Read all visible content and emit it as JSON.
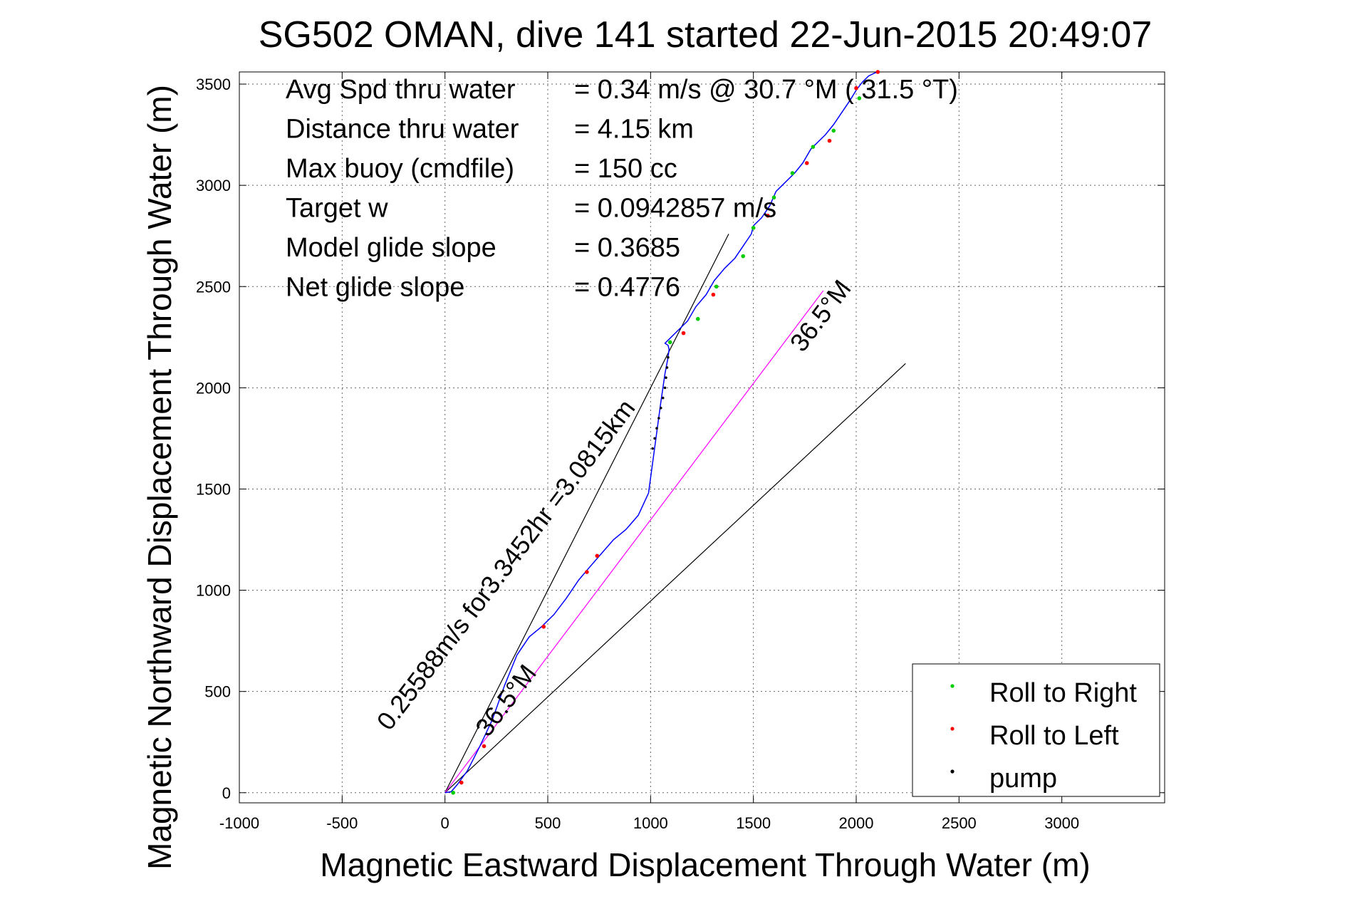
{
  "chart_data": {
    "type": "line",
    "title": "SG502 OMAN, dive 141 started 22-Jun-2015 20:49:07",
    "xlabel": "Magnetic Eastward Displacement Through Water (m)",
    "ylabel": "Magnetic Northward Displacement Through Water (m)",
    "xlim": [
      -1000,
      3000
    ],
    "ylim": [
      0,
      3500
    ],
    "xticks": [
      -1000,
      -500,
      0,
      500,
      1000,
      1500,
      2000,
      2500,
      3000
    ],
    "yticks": [
      0,
      500,
      1000,
      1500,
      2000,
      2500,
      3000,
      3500
    ],
    "grid": true,
    "legend_position": "bottom-right",
    "stats": [
      {
        "label": "Avg Spd thru water",
        "value": "=  0.34 m/s @  30.7 °M (  31.5 °T)"
      },
      {
        "label": "Distance thru water",
        "value": "=  4.15 km"
      },
      {
        "label": "Max buoy (cmdfile)",
        "value": "= 150 cc"
      },
      {
        "label": "Target w",
        "value": "= 0.0942857 m/s"
      },
      {
        "label": "Model glide slope",
        "value": "= 0.3685"
      },
      {
        "label": "Net glide slope",
        "value": "= 0.4776"
      }
    ],
    "annotations": [
      {
        "text": "0.25588m/s for3.3452hr =3.0815km",
        "x": 330,
        "y": 1100,
        "angle_deg": 34
      },
      {
        "text": "36.5°M",
        "x": 1860,
        "y": 2330,
        "angle_deg": 34
      },
      {
        "text": "36.5°M",
        "x": 330,
        "y": 430,
        "angle_deg": 34
      }
    ],
    "reference_lines": [
      {
        "name": "heading-line-upper",
        "from": [
          0,
          0
        ],
        "to": [
          1380,
          2760
        ],
        "color": "#000000"
      },
      {
        "name": "heading-line-lower",
        "from": [
          0,
          0
        ],
        "to": [
          2240,
          2120
        ],
        "color": "#000000"
      },
      {
        "name": "heading-line-current",
        "from": [
          0,
          0
        ],
        "to": [
          1840,
          2480
        ],
        "color": "#ff00ff"
      }
    ],
    "series": [
      {
        "name": "track",
        "color": "#0000ff",
        "x": [
          0,
          30,
          60,
          110,
          170,
          230,
          290,
          350,
          410,
          470,
          530,
          590,
          650,
          700,
          760,
          820,
          880,
          940,
          990,
          1010,
          1030,
          1050,
          1070,
          1085,
          1090,
          1085,
          1070,
          1090,
          1120,
          1150,
          1180,
          1220,
          1270,
          1310,
          1360,
          1410,
          1450,
          1490,
          1500,
          1540,
          1580,
          1610,
          1650,
          1700,
          1740,
          1780,
          1810,
          1850,
          1890,
          1930,
          1970,
          2000,
          2030,
          2060,
          2090,
          2110
        ],
        "y": [
          0,
          5,
          40,
          110,
          230,
          360,
          530,
          680,
          770,
          820,
          880,
          960,
          1050,
          1110,
          1180,
          1250,
          1300,
          1370,
          1480,
          1630,
          1780,
          1930,
          2070,
          2150,
          2190,
          2210,
          2220,
          2240,
          2270,
          2300,
          2330,
          2400,
          2460,
          2530,
          2590,
          2640,
          2700,
          2760,
          2800,
          2840,
          2900,
          2970,
          3010,
          3060,
          3110,
          3180,
          3210,
          3250,
          3300,
          3360,
          3420,
          3470,
          3510,
          3540,
          3555,
          3560
        ]
      },
      {
        "name": "Roll to Right",
        "color": "#00cc00",
        "x": [
          40,
          1095,
          1230,
          1320,
          1450,
          1500,
          1600,
          1690,
          1790,
          1890,
          2015
        ],
        "y": [
          0,
          2225,
          2340,
          2500,
          2650,
          2790,
          2940,
          3060,
          3190,
          3270,
          3430
        ]
      },
      {
        "name": "Roll to Left",
        "color": "#ff0000",
        "x": [
          80,
          190,
          480,
          690,
          740,
          1160,
          1305,
          1570,
          1760,
          1870,
          2000,
          2105
        ],
        "y": [
          50,
          230,
          820,
          1090,
          1170,
          2270,
          2460,
          2850,
          3110,
          3220,
          3480,
          3560
        ]
      },
      {
        "name": "pump",
        "color": "#000000",
        "x": [
          1085,
          1080,
          1075,
          1070,
          1060,
          1050,
          1040,
          1030,
          1020,
          1010
        ],
        "y": [
          2150,
          2100,
          2050,
          2000,
          1950,
          1900,
          1850,
          1800,
          1750,
          1700
        ]
      }
    ],
    "legend": [
      "Roll to Right",
      "Roll to Left",
      "pump"
    ]
  }
}
